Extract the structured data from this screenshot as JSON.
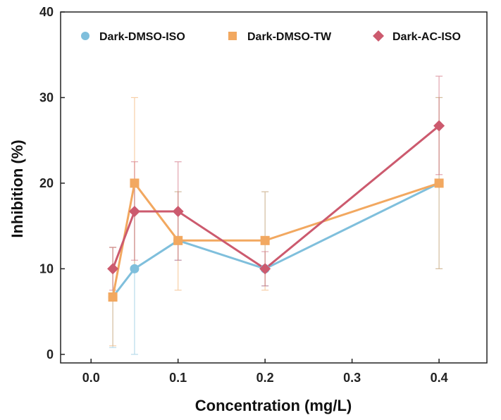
{
  "chart_data": {
    "type": "line",
    "title": "",
    "xlabel": "Concentration (mg/L)",
    "ylabel": "Inhibition (%)",
    "xlim": [
      -0.035,
      0.455
    ],
    "ylim": [
      -1,
      40
    ],
    "xticks": [
      0.0,
      0.1,
      0.2,
      0.3,
      0.4
    ],
    "xtick_labels": [
      "0.0",
      "0.1",
      "0.2",
      "0.3",
      "0.4"
    ],
    "yticks": [
      0,
      10,
      20,
      30,
      40
    ],
    "ytick_labels": [
      "0",
      "10",
      "20",
      "30",
      "40"
    ],
    "grid": false,
    "legend_position": "top",
    "x": [
      0.025,
      0.05,
      0.1,
      0.2,
      0.4
    ],
    "series": [
      {
        "name": "Dark-DMSO-ISO",
        "color": "#7fbfdc",
        "marker": "circle",
        "values": [
          6.7,
          10.0,
          13.3,
          10.0,
          20.0
        ],
        "err_low": [
          0.8,
          0.0,
          11.0,
          8.0,
          10.0
        ],
        "err_high": [
          12.5,
          20.0,
          19.0,
          19.0,
          30.0
        ]
      },
      {
        "name": "Dark-DMSO-TW",
        "color": "#f2a860",
        "marker": "square",
        "values": [
          6.7,
          20.0,
          13.3,
          13.3,
          20.0
        ],
        "err_low": [
          1.0,
          10.0,
          7.5,
          7.5,
          10.0
        ],
        "err_high": [
          12.5,
          30.0,
          19.0,
          19.0,
          30.0
        ]
      },
      {
        "name": "Dark-AC-ISO",
        "color": "#cc5a6e",
        "marker": "diamond",
        "values": [
          10.0,
          16.7,
          16.7,
          10.0,
          26.7
        ],
        "err_low": [
          7.5,
          11.0,
          11.0,
          8.0,
          21.0
        ],
        "err_high": [
          12.5,
          22.5,
          22.5,
          12.0,
          32.5
        ]
      }
    ]
  }
}
